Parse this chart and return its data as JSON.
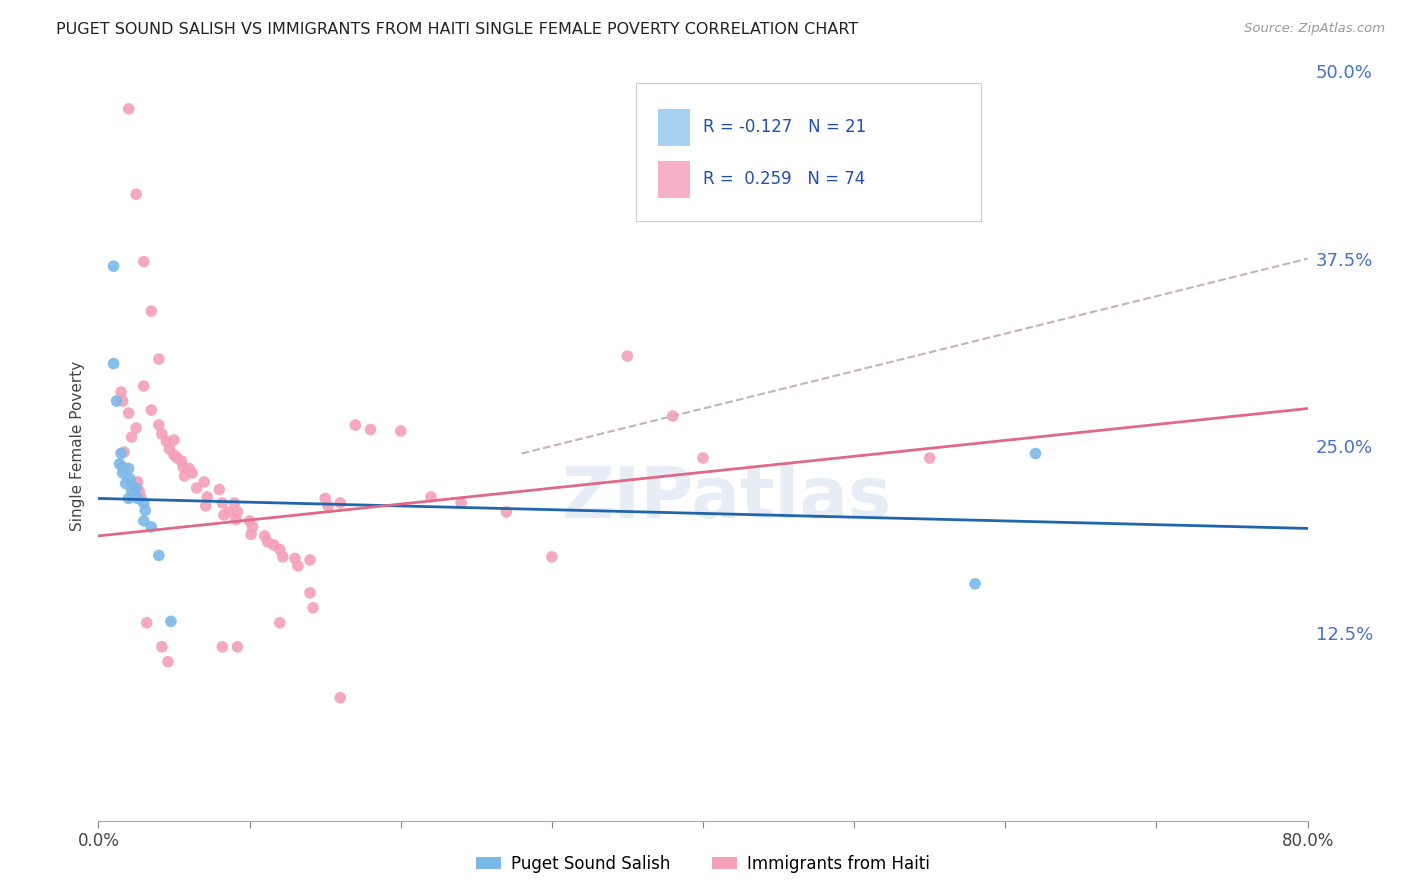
{
  "title": "PUGET SOUND SALISH VS IMMIGRANTS FROM HAITI SINGLE FEMALE POVERTY CORRELATION CHART",
  "source": "Source: ZipAtlas.com",
  "ylabel": "Single Female Poverty",
  "x_min": 0.0,
  "x_max": 0.8,
  "y_min": 0.0,
  "y_max": 0.5,
  "y_ticks": [
    0.0,
    0.125,
    0.25,
    0.375,
    0.5
  ],
  "y_tick_labels": [
    "",
    "12.5%",
    "25.0%",
    "37.5%",
    "50.0%"
  ],
  "x_tick_positions": [
    0.0,
    0.1,
    0.2,
    0.3,
    0.4,
    0.5,
    0.6,
    0.7,
    0.8
  ],
  "x_tick_labels": [
    "0.0%",
    "",
    "",
    "",
    "",
    "",
    "",
    "",
    "80.0%"
  ],
  "watermark": "ZIPatlas",
  "salish_color": "#7ab8e8",
  "haiti_color": "#f4a0b8",
  "salish_line_color": "#2166ac",
  "haiti_line_color": "#e06888",
  "dashed_line_color": "#c8b0bc",
  "background_color": "#ffffff",
  "grid_color": "#d8d8d8",
  "salish_line_x": [
    0.0,
    0.8
  ],
  "salish_line_y": [
    0.215,
    0.195
  ],
  "haiti_line_x": [
    0.0,
    0.8
  ],
  "haiti_line_y": [
    0.19,
    0.275
  ],
  "dash_line_x": [
    0.28,
    0.8
  ],
  "dash_line_y": [
    0.245,
    0.375
  ],
  "legend_R1": "R = -0.127",
  "legend_N1": "N = 21",
  "legend_R2": "R =  0.259",
  "legend_N2": "N = 74",
  "legend_color1": "#a8d0f0",
  "legend_color2": "#f8b0c8",
  "legend_text_color": "#2050b0",
  "salish_label": "Puget Sound Salish",
  "haiti_label": "Immigrants from Haiti",
  "salish_points": [
    [
      0.01,
      0.37
    ],
    [
      0.01,
      0.305
    ],
    [
      0.012,
      0.28
    ],
    [
      0.015,
      0.245
    ],
    [
      0.014,
      0.238
    ],
    [
      0.016,
      0.232
    ],
    [
      0.018,
      0.225
    ],
    [
      0.02,
      0.235
    ],
    [
      0.021,
      0.228
    ],
    [
      0.022,
      0.22
    ],
    [
      0.02,
      0.215
    ],
    [
      0.025,
      0.222
    ],
    [
      0.026,
      0.215
    ],
    [
      0.03,
      0.212
    ],
    [
      0.031,
      0.207
    ],
    [
      0.03,
      0.2
    ],
    [
      0.035,
      0.196
    ],
    [
      0.04,
      0.177
    ],
    [
      0.048,
      0.133
    ],
    [
      0.62,
      0.245
    ],
    [
      0.58,
      0.158
    ]
  ],
  "haiti_points": [
    [
      0.02,
      0.475
    ],
    [
      0.025,
      0.418
    ],
    [
      0.03,
      0.373
    ],
    [
      0.035,
      0.34
    ],
    [
      0.04,
      0.308
    ],
    [
      0.03,
      0.29
    ],
    [
      0.035,
      0.274
    ],
    [
      0.04,
      0.264
    ],
    [
      0.042,
      0.258
    ],
    [
      0.05,
      0.254
    ],
    [
      0.045,
      0.253
    ],
    [
      0.047,
      0.248
    ],
    [
      0.05,
      0.244
    ],
    [
      0.052,
      0.242
    ],
    [
      0.055,
      0.24
    ],
    [
      0.056,
      0.236
    ],
    [
      0.06,
      0.235
    ],
    [
      0.062,
      0.232
    ],
    [
      0.057,
      0.23
    ],
    [
      0.07,
      0.226
    ],
    [
      0.065,
      0.222
    ],
    [
      0.072,
      0.216
    ],
    [
      0.071,
      0.21
    ],
    [
      0.08,
      0.221
    ],
    [
      0.082,
      0.212
    ],
    [
      0.086,
      0.206
    ],
    [
      0.083,
      0.204
    ],
    [
      0.09,
      0.212
    ],
    [
      0.092,
      0.206
    ],
    [
      0.091,
      0.201
    ],
    [
      0.1,
      0.2
    ],
    [
      0.102,
      0.196
    ],
    [
      0.101,
      0.191
    ],
    [
      0.11,
      0.19
    ],
    [
      0.112,
      0.186
    ],
    [
      0.116,
      0.184
    ],
    [
      0.12,
      0.181
    ],
    [
      0.122,
      0.176
    ],
    [
      0.13,
      0.175
    ],
    [
      0.132,
      0.17
    ],
    [
      0.14,
      0.174
    ],
    [
      0.15,
      0.215
    ],
    [
      0.152,
      0.21
    ],
    [
      0.16,
      0.212
    ],
    [
      0.17,
      0.264
    ],
    [
      0.18,
      0.261
    ],
    [
      0.2,
      0.26
    ],
    [
      0.22,
      0.216
    ],
    [
      0.24,
      0.212
    ],
    [
      0.27,
      0.206
    ],
    [
      0.3,
      0.176
    ],
    [
      0.35,
      0.31
    ],
    [
      0.38,
      0.27
    ],
    [
      0.4,
      0.242
    ],
    [
      0.55,
      0.242
    ],
    [
      0.12,
      0.132
    ],
    [
      0.14,
      0.152
    ],
    [
      0.142,
      0.142
    ],
    [
      0.082,
      0.116
    ],
    [
      0.092,
      0.116
    ],
    [
      0.16,
      0.082
    ],
    [
      0.015,
      0.286
    ],
    [
      0.016,
      0.28
    ],
    [
      0.02,
      0.272
    ],
    [
      0.025,
      0.262
    ],
    [
      0.022,
      0.256
    ],
    [
      0.017,
      0.246
    ],
    [
      0.016,
      0.236
    ],
    [
      0.026,
      0.226
    ],
    [
      0.027,
      0.22
    ],
    [
      0.028,
      0.216
    ],
    [
      0.032,
      0.132
    ],
    [
      0.042,
      0.116
    ],
    [
      0.046,
      0.106
    ]
  ]
}
